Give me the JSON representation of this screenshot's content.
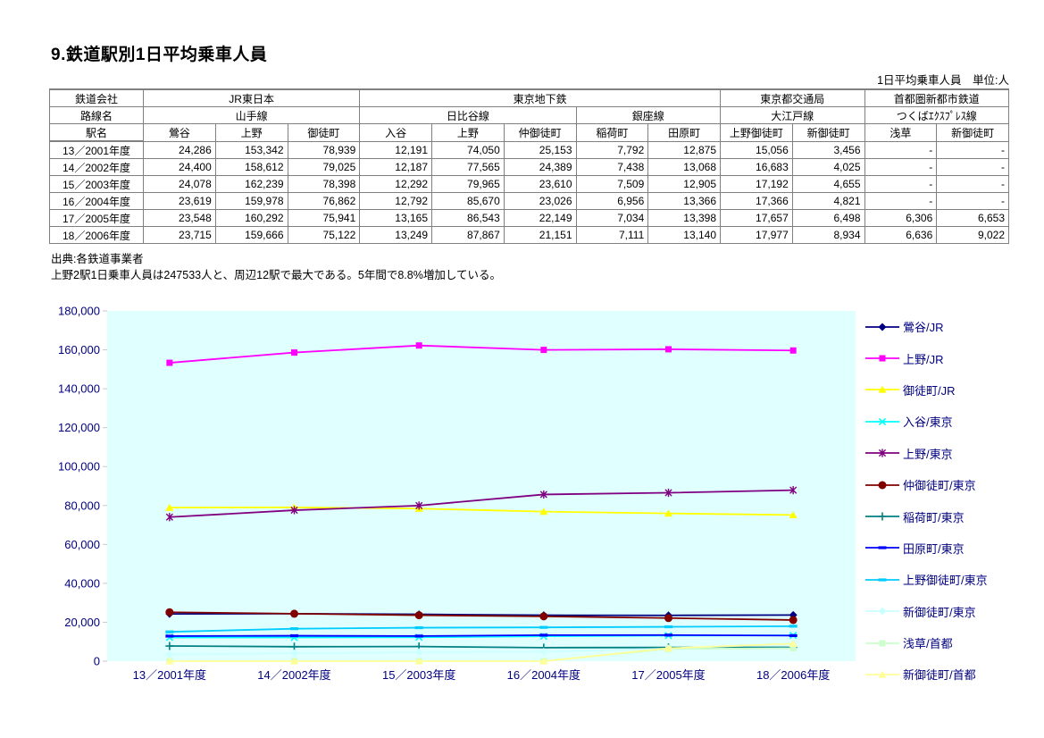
{
  "page": {
    "title": "9.鉄道駅別1日平均乗車人員",
    "unit_note": "1日平均乗車人員　単位:人",
    "source_note": "出典:各鉄道事業者",
    "summary_note": "上野2駅1日乗車人員は247533人と、周辺12駅で最大である。5年間で8.8%増加している。"
  },
  "table": {
    "header": {
      "company_label": "鉄道会社",
      "line_label": "路線名",
      "station_label": "駅名",
      "companies": [
        {
          "name": "JR東日本",
          "span": 3
        },
        {
          "name": "東京地下鉄",
          "span": 5
        },
        {
          "name": "東京都交通局",
          "span": 2
        },
        {
          "name": "首都圏新都市鉄道",
          "span": 2
        }
      ],
      "lines": [
        {
          "name": "山手線",
          "span": 3
        },
        {
          "name": "日比谷線",
          "span": 3
        },
        {
          "name": "銀座線",
          "span": 2
        },
        {
          "name": "大江戸線",
          "span": 2
        },
        {
          "name": "つくばｴｸｽﾌﾟﾚｽ線",
          "span": 2
        }
      ],
      "stations": [
        "鶯谷",
        "上野",
        "御徒町",
        "入谷",
        "上野",
        "仲御徒町",
        "稲荷町",
        "田原町",
        "上野御徒町",
        "新御徒町",
        "浅草",
        "新御徒町"
      ]
    },
    "rows": [
      {
        "year": "13／2001年度",
        "values": [
          "24,286",
          "153,342",
          "78,939",
          "12,191",
          "74,050",
          "25,153",
          "7,792",
          "12,875",
          "15,056",
          "3,456",
          "-",
          "-"
        ]
      },
      {
        "year": "14／2002年度",
        "values": [
          "24,400",
          "158,612",
          "79,025",
          "12,187",
          "77,565",
          "24,389",
          "7,438",
          "13,068",
          "16,683",
          "4,025",
          "-",
          "-"
        ]
      },
      {
        "year": "15／2003年度",
        "values": [
          "24,078",
          "162,239",
          "78,398",
          "12,292",
          "79,965",
          "23,610",
          "7,509",
          "12,905",
          "17,192",
          "4,655",
          "-",
          "-"
        ]
      },
      {
        "year": "16／2004年度",
        "values": [
          "23,619",
          "159,978",
          "76,862",
          "12,792",
          "85,670",
          "23,026",
          "6,956",
          "13,366",
          "17,366",
          "4,821",
          "-",
          "-"
        ]
      },
      {
        "year": "17／2005年度",
        "values": [
          "23,548",
          "160,292",
          "75,941",
          "13,165",
          "86,543",
          "22,149",
          "7,034",
          "13,398",
          "17,657",
          "6,498",
          "6,306",
          "6,653"
        ]
      },
      {
        "year": "18／2006年度",
        "values": [
          "23,715",
          "159,666",
          "75,122",
          "13,249",
          "87,867",
          "21,151",
          "7,111",
          "13,140",
          "17,977",
          "8,934",
          "6,636",
          "9,022"
        ]
      }
    ]
  },
  "chart_data": {
    "type": "line",
    "title": "",
    "xlabel": "",
    "ylabel": "",
    "x": [
      "13／2001年度",
      "14／2002年度",
      "15／2003年度",
      "16／2004年度",
      "17／2005年度",
      "18／2006年度"
    ],
    "ylim": [
      0,
      180000
    ],
    "ystep": 20000,
    "grid": false,
    "legend_position": "right",
    "plot_bg_color": "#E0FFFF",
    "axis_text_color": "#000080",
    "missing_note": "missing values (-) plotted as 0",
    "series": [
      {
        "name": "鶯谷/JR",
        "color": "#000080",
        "marker": "diamond",
        "values": [
          24286,
          24400,
          24078,
          23619,
          23548,
          23715
        ]
      },
      {
        "name": "上野/JR",
        "color": "#FF00FF",
        "marker": "square",
        "values": [
          153342,
          158612,
          162239,
          159978,
          160292,
          159666
        ]
      },
      {
        "name": "御徒町/JR",
        "color": "#FFFF00",
        "marker": "triangle",
        "values": [
          78939,
          79025,
          78398,
          76862,
          75941,
          75122
        ]
      },
      {
        "name": "入谷/東京",
        "color": "#00FFFF",
        "marker": "x",
        "values": [
          12191,
          12187,
          12292,
          12792,
          13165,
          13249
        ]
      },
      {
        "name": "上野/東京",
        "color": "#800080",
        "marker": "asterisk",
        "values": [
          74050,
          77565,
          79965,
          85670,
          86543,
          87867
        ]
      },
      {
        "name": "仲御徒町/東京",
        "color": "#800000",
        "marker": "circle",
        "values": [
          25153,
          24389,
          23610,
          23026,
          22149,
          21151
        ]
      },
      {
        "name": "稲荷町/東京",
        "color": "#008080",
        "marker": "plus",
        "values": [
          7792,
          7438,
          7509,
          6956,
          7034,
          7111
        ]
      },
      {
        "name": "田原町/東京",
        "color": "#0000FF",
        "marker": "dash",
        "values": [
          12875,
          13068,
          12905,
          13366,
          13398,
          13140
        ]
      },
      {
        "name": "上野御徒町/東京",
        "color": "#00CCFF",
        "marker": "dash",
        "values": [
          15056,
          16683,
          17192,
          17366,
          17657,
          17977
        ]
      },
      {
        "name": "新御徒町/東京",
        "color": "#CCFFFF",
        "marker": "diamond",
        "values": [
          3456,
          4025,
          4655,
          4821,
          6498,
          8934
        ]
      },
      {
        "name": "浅草/首都",
        "color": "#CCFFCC",
        "marker": "square",
        "values": [
          0,
          0,
          0,
          0,
          6306,
          6636
        ]
      },
      {
        "name": "新御徒町/首都",
        "color": "#FFFF99",
        "marker": "triangle",
        "values": [
          0,
          0,
          0,
          0,
          6653,
          9022
        ]
      }
    ]
  }
}
